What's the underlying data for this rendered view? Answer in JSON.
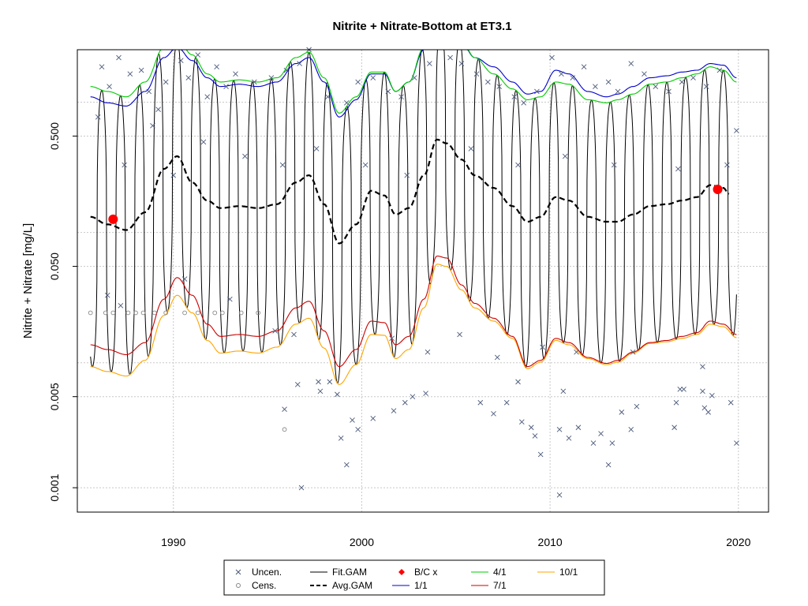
{
  "chart_data": {
    "type": "line",
    "title": "Nitrite + Nitrate-Bottom at ET3.1",
    "ylabel": "Nitrite + Nitrate [mg/L]",
    "xlabel": "",
    "y_scale": "log",
    "xlim": [
      1984.9,
      2021.6
    ],
    "ylim": [
      0.00065,
      2.3
    ],
    "x_ticks": [
      "1990",
      "2000",
      "2010",
      "2020"
    ],
    "x_tick_values": [
      1990,
      2000,
      2010,
      2020
    ],
    "y_ticks": [
      "0.001",
      "0.005",
      "0.050",
      "0.500"
    ],
    "y_tick_values": [
      0.001,
      0.005,
      0.05,
      0.5
    ],
    "grid": true,
    "legend_placement": "bottom-outside",
    "legend": [
      {
        "name": "Uncen.",
        "symbol": "x",
        "color": "#4b5a7a"
      },
      {
        "name": "Cens.",
        "symbol": "o",
        "color": "#888888"
      },
      {
        "name": "Fit.GAM",
        "symbol": "line",
        "color": "#000000"
      },
      {
        "name": "Avg.GAM",
        "symbol": "dash",
        "color": "#000000"
      },
      {
        "name": "B/C x",
        "symbol": "diamond",
        "color": "#ff0000"
      },
      {
        "name": "1/1",
        "symbol": "line",
        "color": "#0000cc"
      },
      {
        "name": "4/1",
        "symbol": "line",
        "color": "#00cc00"
      },
      {
        "name": "7/1",
        "symbol": "line",
        "color": "#cc0000"
      },
      {
        "name": "10/1",
        "symbol": "line",
        "color": "#ffa500"
      }
    ],
    "series": [
      {
        "name": "Avg.GAM",
        "x": [
          1985.6,
          1986.5,
          1987.5,
          1988.5,
          1989.5,
          1990.2,
          1991,
          1991.8,
          1992.5,
          1993.5,
          1994.5,
          1995.5,
          1996.5,
          1997.2,
          1998,
          1998.8,
          1999.7,
          2000.5,
          2001.2,
          2001.8,
          2002.5,
          2003.3,
          2004,
          2004.5,
          2005.3,
          2006,
          2007,
          2008,
          2008.8,
          2009.5,
          2010.3,
          2011,
          2012,
          2013,
          2013.6,
          2014.4,
          2015.3,
          2016.2,
          2017,
          2017.8,
          2018.5,
          2019.2,
          2019.5
        ],
        "values": [
          0.12,
          0.105,
          0.095,
          0.13,
          0.28,
          0.35,
          0.22,
          0.16,
          0.14,
          0.145,
          0.14,
          0.15,
          0.22,
          0.25,
          0.15,
          0.075,
          0.105,
          0.19,
          0.175,
          0.125,
          0.14,
          0.25,
          0.47,
          0.44,
          0.33,
          0.25,
          0.2,
          0.145,
          0.11,
          0.12,
          0.17,
          0.16,
          0.12,
          0.11,
          0.11,
          0.125,
          0.145,
          0.15,
          0.16,
          0.17,
          0.21,
          0.2,
          0.18
        ]
      },
      {
        "name": "1/1",
        "x": [
          1985.6,
          1986.5,
          1987.5,
          1988.5,
          1989.5,
          1990.2,
          1991,
          1991.8,
          1992.5,
          1993.5,
          1994.5,
          1995.5,
          1996.5,
          1997.2,
          1998,
          1998.8,
          1999.7,
          2000.5,
          2001.2,
          2001.8,
          2002.5,
          2003.3,
          2004,
          2004.5,
          2005.3,
          2006,
          2007,
          2008,
          2008.8,
          2009.5,
          2010.3,
          2011,
          2012,
          2013,
          2013.6,
          2014.4,
          2015.3,
          2016.2,
          2017,
          2017.8,
          2018.5,
          2019.2,
          2019.9
        ],
        "values": [
          1.0,
          0.9,
          0.85,
          1.1,
          2.0,
          2.4,
          1.9,
          1.4,
          1.2,
          1.25,
          1.2,
          1.3,
          1.8,
          2.0,
          1.3,
          0.7,
          0.95,
          1.5,
          1.5,
          1.1,
          1.3,
          2.3,
          4.0,
          3.7,
          2.6,
          2.0,
          1.7,
          1.3,
          1.05,
          1.1,
          1.6,
          1.5,
          1.1,
          1.0,
          1.05,
          1.2,
          1.4,
          1.45,
          1.55,
          1.6,
          1.8,
          1.75,
          1.4
        ]
      },
      {
        "name": "4/1",
        "x": [
          1985.6,
          1986.5,
          1987.5,
          1988.5,
          1989.5,
          1990.2,
          1991,
          1991.8,
          1992.5,
          1993.5,
          1994.5,
          1995.5,
          1996.5,
          1997.2,
          1998,
          1998.8,
          1999.7,
          2000.5,
          2001.2,
          2001.8,
          2002.5,
          2003.3,
          2004,
          2004.5,
          2005.3,
          2006,
          2007,
          2008,
          2008.8,
          2009.5,
          2010.3,
          2011,
          2012,
          2013,
          2013.6,
          2014.4,
          2015.3,
          2016.2,
          2017,
          2017.8,
          2018.5,
          2019.2,
          2019.9
        ],
        "values": [
          1.2,
          1.1,
          1.0,
          1.3,
          2.4,
          2.8,
          2.1,
          1.5,
          1.3,
          1.35,
          1.3,
          1.4,
          2.0,
          2.2,
          1.4,
          0.75,
          1.0,
          1.55,
          1.55,
          1.1,
          1.3,
          2.4,
          4.2,
          3.9,
          2.7,
          2.0,
          1.5,
          1.15,
          0.95,
          1.0,
          1.3,
          1.25,
          0.95,
          0.9,
          0.95,
          1.05,
          1.25,
          1.3,
          1.4,
          1.5,
          1.7,
          1.6,
          1.3
        ]
      },
      {
        "name": "7/1",
        "x": [
          1985.6,
          1986.5,
          1987.5,
          1988.5,
          1989.5,
          1990.2,
          1991,
          1991.8,
          1992.5,
          1993.5,
          1994.5,
          1995.5,
          1996.5,
          1997.2,
          1998,
          1998.8,
          1999.7,
          2000.5,
          2001.2,
          2001.8,
          2002.5,
          2003.3,
          2004,
          2004.5,
          2005.3,
          2006,
          2007,
          2008,
          2008.8,
          2009.5,
          2010.3,
          2011,
          2012,
          2013,
          2013.6,
          2014.4,
          2015.3,
          2016.2,
          2017,
          2017.8,
          2018.5,
          2019.2,
          2019.9
        ],
        "values": [
          0.0125,
          0.0115,
          0.0105,
          0.013,
          0.028,
          0.041,
          0.03,
          0.018,
          0.0145,
          0.015,
          0.0145,
          0.016,
          0.024,
          0.027,
          0.016,
          0.0085,
          0.0115,
          0.019,
          0.0185,
          0.0125,
          0.0145,
          0.028,
          0.06,
          0.058,
          0.036,
          0.026,
          0.02,
          0.0145,
          0.0085,
          0.0095,
          0.014,
          0.013,
          0.01,
          0.009,
          0.0095,
          0.011,
          0.013,
          0.0135,
          0.0145,
          0.0155,
          0.019,
          0.018,
          0.015
        ]
      },
      {
        "name": "10/1",
        "x": [
          1985.6,
          1986.5,
          1987.5,
          1988.5,
          1989.5,
          1990.2,
          1991,
          1991.8,
          1992.5,
          1993.5,
          1994.5,
          1995.5,
          1996.5,
          1997.2,
          1998,
          1998.8,
          1999.7,
          2000.5,
          2001.2,
          2001.8,
          2002.5,
          2003.3,
          2004,
          2004.5,
          2005.3,
          2006,
          2007,
          2008,
          2008.8,
          2009.5,
          2010.3,
          2011,
          2012,
          2013,
          2013.6,
          2014.4,
          2015.3,
          2016.2,
          2017,
          2017.8,
          2018.5,
          2019.2,
          2019.9
        ],
        "values": [
          0.0085,
          0.0078,
          0.0072,
          0.0095,
          0.021,
          0.03,
          0.022,
          0.0135,
          0.0108,
          0.0112,
          0.0108,
          0.012,
          0.018,
          0.02,
          0.0118,
          0.0062,
          0.0088,
          0.015,
          0.0148,
          0.0098,
          0.0115,
          0.024,
          0.052,
          0.05,
          0.033,
          0.024,
          0.019,
          0.014,
          0.0082,
          0.0092,
          0.0135,
          0.0125,
          0.0098,
          0.0088,
          0.0092,
          0.0108,
          0.0128,
          0.0132,
          0.014,
          0.015,
          0.018,
          0.0172,
          0.0142
        ]
      }
    ],
    "points_uncensored": [
      [
        1986.2,
        1.7
      ],
      [
        1986.6,
        1.2
      ],
      [
        1987.1,
        2.0
      ],
      [
        1987.7,
        1.5
      ],
      [
        1988.3,
        1.6
      ],
      [
        1988.7,
        1.1
      ],
      [
        1989.2,
        0.8
      ],
      [
        1989.6,
        1.3
      ],
      [
        1990.4,
        1.9
      ],
      [
        1990.8,
        1.4
      ],
      [
        1991.3,
        2.1
      ],
      [
        1991.8,
        1.0
      ],
      [
        1992.3,
        1.7
      ],
      [
        1992.8,
        1.2
      ],
      [
        1993.3,
        1.5
      ],
      [
        1994.3,
        1.3
      ],
      [
        1995.2,
        1.4
      ],
      [
        1996.0,
        1.6
      ],
      [
        1996.7,
        1.8
      ],
      [
        1997.2,
        2.3
      ],
      [
        1998.2,
        1.0
      ],
      [
        1999.2,
        0.9
      ],
      [
        1999.8,
        1.3
      ],
      [
        2000.6,
        1.4
      ],
      [
        2001.4,
        1.1
      ],
      [
        2002.1,
        1.0
      ],
      [
        2002.8,
        1.4
      ],
      [
        2003.6,
        1.8
      ],
      [
        2004.2,
        2.4
      ],
      [
        2004.7,
        2.0
      ],
      [
        2005.3,
        1.8
      ],
      [
        2006.1,
        1.5
      ],
      [
        2006.7,
        1.3
      ],
      [
        2007.3,
        1.2
      ],
      [
        2008.1,
        1.0
      ],
      [
        2008.6,
        0.9
      ],
      [
        2009.3,
        1.1
      ],
      [
        2010.1,
        2.0
      ],
      [
        2010.6,
        1.5
      ],
      [
        2011.2,
        1.4
      ],
      [
        2011.8,
        1.7
      ],
      [
        2012.4,
        1.2
      ],
      [
        2013.1,
        1.3
      ],
      [
        2013.6,
        1.1
      ],
      [
        2014.3,
        1.8
      ],
      [
        2015.0,
        1.5
      ],
      [
        2015.6,
        1.2
      ],
      [
        2016.3,
        1.1
      ],
      [
        2017.0,
        1.3
      ],
      [
        2017.6,
        1.4
      ],
      [
        2018.3,
        1.2
      ],
      [
        2019.0,
        1.6
      ],
      [
        2019.9,
        0.55
      ],
      [
        1986.0,
        0.7
      ],
      [
        1987.4,
        0.3
      ],
      [
        1988.9,
        0.6
      ],
      [
        1990.0,
        0.25
      ],
      [
        1991.6,
        0.45
      ],
      [
        1993.8,
        0.35
      ],
      [
        1995.8,
        0.3
      ],
      [
        1997.6,
        0.4
      ],
      [
        2000.2,
        0.3
      ],
      [
        2002.4,
        0.25
      ],
      [
        2005.8,
        0.4
      ],
      [
        2008.3,
        0.3
      ],
      [
        2010.8,
        0.35
      ],
      [
        2013.4,
        0.3
      ],
      [
        2016.8,
        0.28
      ],
      [
        2019.4,
        0.3
      ],
      [
        1986.5,
        0.03
      ],
      [
        1987.2,
        0.025
      ],
      [
        1990.6,
        0.04
      ],
      [
        1993.0,
        0.028
      ],
      [
        1995.4,
        0.016
      ],
      [
        1996.4,
        0.015
      ],
      [
        1997.7,
        0.0065
      ],
      [
        1998.3,
        0.0065
      ],
      [
        2001.6,
        0.014
      ],
      [
        2003.5,
        0.011
      ],
      [
        2005.2,
        0.015
      ],
      [
        2007.2,
        0.01
      ],
      [
        2009.6,
        0.012
      ],
      [
        2011.4,
        0.011
      ],
      [
        2014.4,
        0.011
      ],
      [
        2018.1,
        0.0085
      ],
      [
        1995.9,
        0.004
      ],
      [
        1996.6,
        0.0062
      ],
      [
        1997.8,
        0.0055
      ],
      [
        1998.7,
        0.0052
      ],
      [
        1998.9,
        0.0024
      ],
      [
        1999.2,
        0.0015
      ],
      [
        1999.5,
        0.0033
      ],
      [
        1999.8,
        0.0028
      ],
      [
        2000.6,
        0.0034
      ],
      [
        2001.7,
        0.0039
      ],
      [
        2002.3,
        0.0045
      ],
      [
        2002.7,
        0.005
      ],
      [
        2003.4,
        0.0053
      ],
      [
        2006.3,
        0.0045
      ],
      [
        2007.0,
        0.0037
      ],
      [
        2007.7,
        0.0045
      ],
      [
        2008.3,
        0.0065
      ],
      [
        2008.5,
        0.0032
      ],
      [
        2009.0,
        0.0029
      ],
      [
        2009.2,
        0.0025
      ],
      [
        2009.5,
        0.0018
      ],
      [
        2010.5,
        0.0028
      ],
      [
        2010.7,
        0.0055
      ],
      [
        2011.0,
        0.0024
      ],
      [
        2011.5,
        0.0029
      ],
      [
        2012.3,
        0.0022
      ],
      [
        2012.7,
        0.0026
      ],
      [
        2013.1,
        0.0015
      ],
      [
        2013.3,
        0.0022
      ],
      [
        2013.8,
        0.0038
      ],
      [
        2014.3,
        0.0028
      ],
      [
        2014.6,
        0.0042
      ],
      [
        2016.6,
        0.0029
      ],
      [
        2016.7,
        0.0045
      ],
      [
        2016.9,
        0.0057
      ],
      [
        2017.1,
        0.0057
      ],
      [
        2018.1,
        0.0055
      ],
      [
        2018.2,
        0.0041
      ],
      [
        2018.4,
        0.0038
      ],
      [
        2018.6,
        0.0051
      ],
      [
        2019.6,
        0.0045
      ],
      [
        2019.9,
        0.0022
      ],
      [
        1996.8,
        0.001
      ],
      [
        2010.5,
        0.00088
      ]
    ],
    "points_censored": [
      [
        1985.6,
        0.022
      ],
      [
        1986.4,
        0.022
      ],
      [
        1986.8,
        0.022
      ],
      [
        1987.6,
        0.022
      ],
      [
        1988.0,
        0.022
      ],
      [
        1988.4,
        0.022
      ],
      [
        1989.0,
        0.022
      ],
      [
        1989.6,
        0.022
      ],
      [
        1990.6,
        0.022
      ],
      [
        1991.3,
        0.022
      ],
      [
        1992.2,
        0.022
      ],
      [
        1992.6,
        0.022
      ],
      [
        1993.6,
        0.022
      ],
      [
        1994.5,
        0.022
      ],
      [
        1995.9,
        0.0028
      ]
    ],
    "bc_points": [
      {
        "x": 1986.8,
        "y": 0.115
      },
      {
        "x": 2018.9,
        "y": 0.195
      }
    ]
  }
}
